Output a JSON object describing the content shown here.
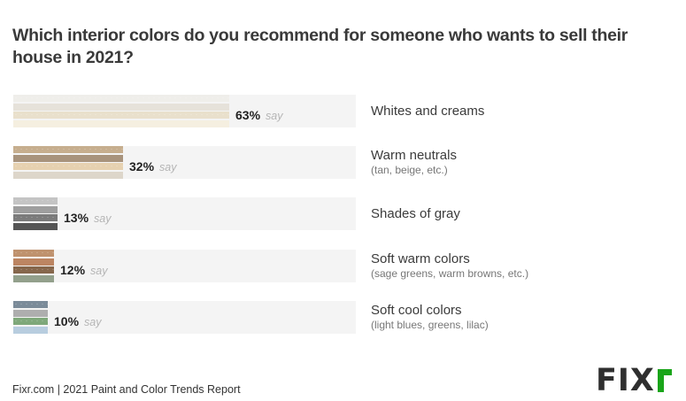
{
  "title": "Which interior colors do you recommend for someone who wants to sell their house in 2021?",
  "footer": {
    "source": "Fixr.com | 2021 Paint and Color Trends Report"
  },
  "logo": {
    "text": "FIX",
    "accent_letter": "r",
    "accent_color": "#1aa51a",
    "text_color": "#2f2f2f"
  },
  "say_label": "say",
  "rows": [
    {
      "label": "Whites and creams",
      "sublabel": "",
      "value": 63,
      "display": "63%",
      "stripes": [
        "#efeeea",
        "#e6e2da",
        "#e9e0cc",
        "#f5efe0"
      ]
    },
    {
      "label": "Warm neutrals",
      "sublabel": "(tan, beige, etc.)",
      "value": 32,
      "display": "32%",
      "stripes": [
        "#c6ae8e",
        "#a8937c",
        "#e6d1b0",
        "#ddd6ca"
      ]
    },
    {
      "label": "Shades of gray",
      "sublabel": "",
      "value": 13,
      "display": "13%",
      "stripes": [
        "#c4c4c4",
        "#9e9e9e",
        "#7b7b7b",
        "#555555"
      ]
    },
    {
      "label": "Soft warm colors",
      "sublabel": "(sage greens, warm browns, etc.)",
      "value": 12,
      "display": "12%",
      "stripes": [
        "#bf926e",
        "#bc8562",
        "#86674c",
        "#93a08c"
      ]
    },
    {
      "label": "Soft cool colors",
      "sublabel": "(light blues, greens, lilac)",
      "value": 10,
      "display": "10%",
      "stripes": [
        "#7b8b99",
        "#aeaeae",
        "#7fa87a",
        "#b8cddf"
      ]
    }
  ],
  "chart_data": {
    "type": "bar",
    "orientation": "horizontal",
    "title": "Which interior colors do you recommend for someone who wants to sell their house in 2021?",
    "categories": [
      "Whites and creams",
      "Warm neutrals (tan, beige, etc.)",
      "Shades of gray",
      "Soft warm colors (sage greens, warm browns, etc.)",
      "Soft cool colors (light blues, greens, lilac)"
    ],
    "values": [
      63,
      32,
      13,
      12,
      10
    ],
    "unit": "%",
    "value_suffix": "say",
    "xlim": [
      0,
      100
    ],
    "grid": false,
    "legend": false,
    "xlabel": "",
    "ylabel": "",
    "source": "Fixr.com | 2021 Paint and Color Trends Report"
  }
}
